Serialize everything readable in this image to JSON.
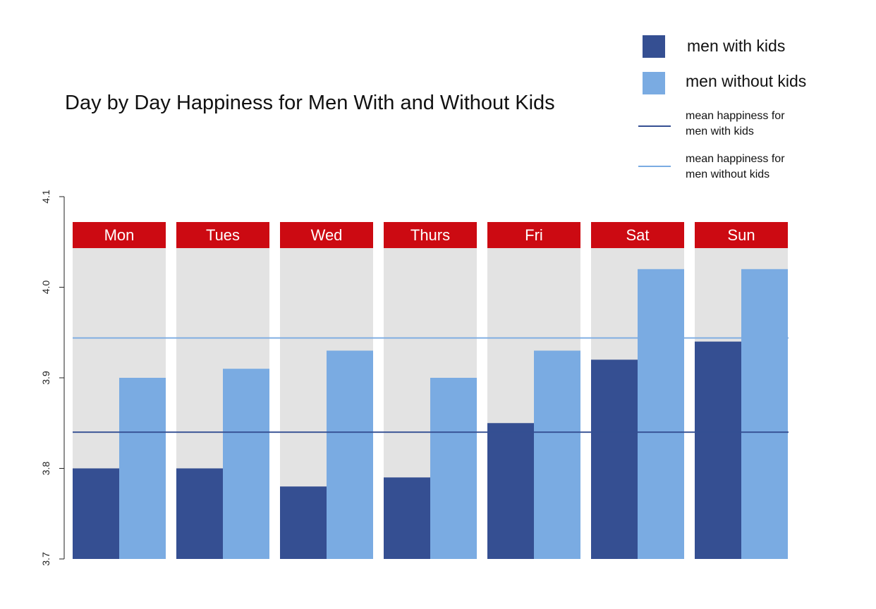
{
  "chart_data": {
    "type": "bar",
    "title": "Day by Day Happiness for Men With and Without Kids",
    "xlabel": "",
    "ylabel": "",
    "categories": [
      "Mon",
      "Tues",
      "Wed",
      "Thurs",
      "Fri",
      "Sat",
      "Sun"
    ],
    "series": [
      {
        "name": "men with kids",
        "color": "#354f92",
        "values": [
          3.8,
          3.8,
          3.78,
          3.79,
          3.85,
          3.92,
          3.94
        ]
      },
      {
        "name": "men without kids",
        "color": "#7aabe2",
        "values": [
          3.9,
          3.91,
          3.93,
          3.9,
          3.93,
          4.02,
          4.02
        ]
      }
    ],
    "reference_lines": [
      {
        "name": "mean happiness for men with kids",
        "value": 3.84,
        "color": "#354f92"
      },
      {
        "name": "mean happiness for men without kids",
        "value": 3.944,
        "color": "#7aabe2"
      }
    ],
    "ylim": [
      3.7,
      4.1
    ],
    "yticks": [
      "3.7",
      "3.8",
      "3.9",
      "4.0",
      "4.1"
    ],
    "legend_position": "top-right",
    "grid": false,
    "panel_background": "#e3e3e3",
    "day_header_color": "#cc0a12"
  },
  "legend": {
    "items": [
      {
        "kind": "swatch",
        "label": "men with kids",
        "color": "#354f92"
      },
      {
        "kind": "swatch",
        "label": "men without kids",
        "color": "#7aabe2"
      },
      {
        "kind": "line",
        "label": "mean happiness for men with kids",
        "color": "#354f92"
      },
      {
        "kind": "line",
        "label": "mean happiness for men without kids",
        "color": "#7aabe2"
      }
    ]
  }
}
